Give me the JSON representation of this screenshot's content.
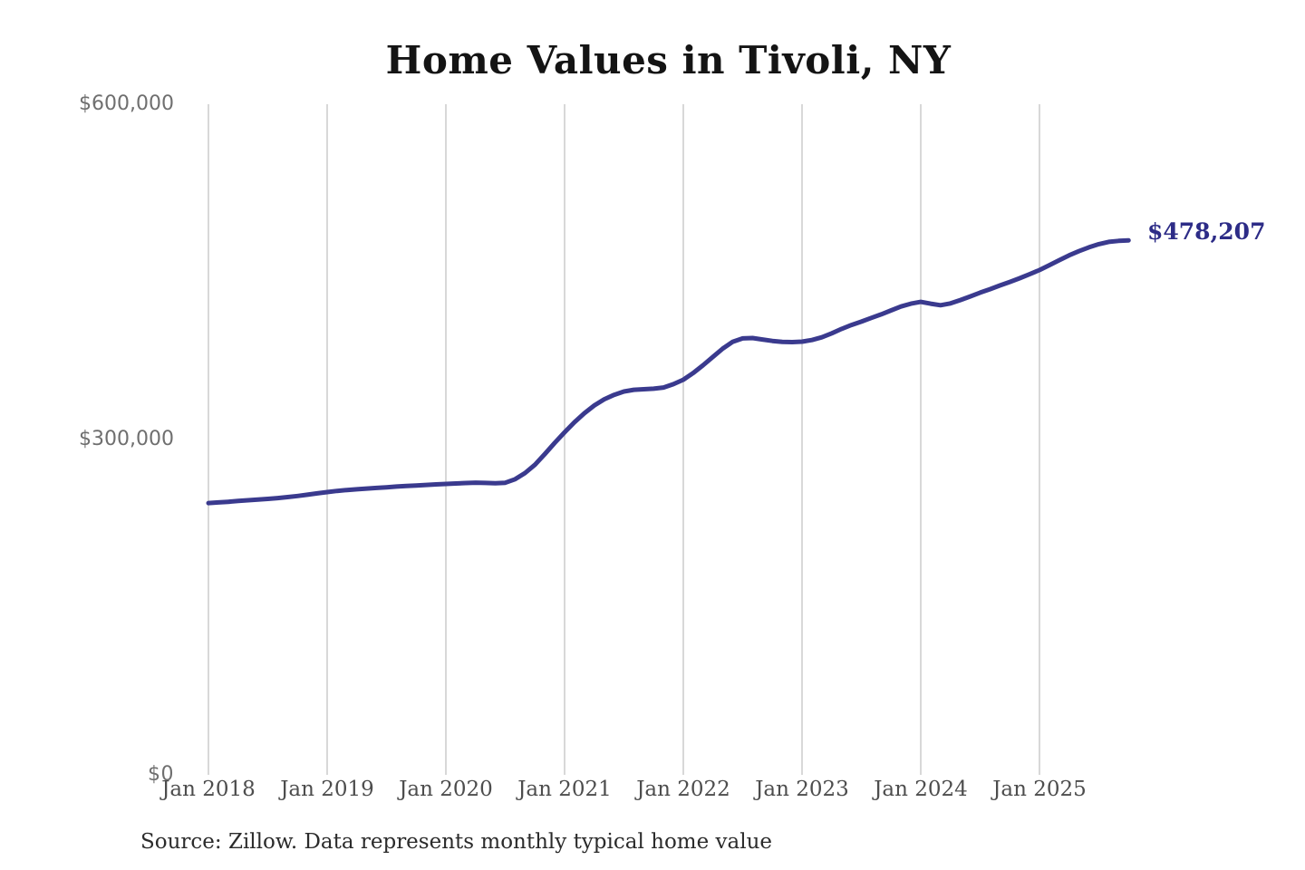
{
  "chart_data": {
    "type": "line",
    "title": "Home Values in Tivoli, NY",
    "source_note": "Source: Zillow. Data represents monthly typical home value",
    "end_label": "$478,207",
    "final_value": 478207,
    "xlabel": "",
    "ylabel": "",
    "ylim": [
      0,
      600000
    ],
    "y_tick_values": [
      0,
      300000,
      600000
    ],
    "y_tick_labels": [
      "$0",
      "$300,000",
      "$600,000"
    ],
    "x_tick_labels": [
      "Jan 2018",
      "Jan 2019",
      "Jan 2020",
      "Jan 2021",
      "Jan 2022",
      "Jan 2023",
      "Jan 2024",
      "Jan 2025"
    ],
    "grid": "vertical-only",
    "legend_position": "none",
    "line_color": "#3a3a8e",
    "end_label_color": "#2d2c87",
    "grid_color": "#cccccc",
    "series": [
      {
        "name": "Monthly typical home value",
        "interval": "monthly",
        "start_month": "Jan 2018",
        "end_month": "Oct 2025",
        "values": [
          243200,
          243700,
          244300,
          245000,
          245700,
          246300,
          246900,
          247600,
          248500,
          249500,
          250600,
          251800,
          253000,
          254000,
          254800,
          255500,
          256100,
          256700,
          257300,
          257900,
          258400,
          258900,
          259400,
          259900,
          260300,
          260700,
          261100,
          261400,
          261200,
          260900,
          261300,
          264500,
          270000,
          277500,
          287000,
          297000,
          306500,
          315500,
          323500,
          330500,
          336000,
          340000,
          343000,
          344500,
          345000,
          345500,
          346500,
          349500,
          353500,
          359500,
          366500,
          374000,
          381500,
          387500,
          390500,
          390800,
          389500,
          388200,
          387400,
          387200,
          387600,
          389000,
          391500,
          395000,
          399000,
          402500,
          405500,
          408800,
          412000,
          415500,
          419000,
          421500,
          423200,
          421500,
          420200,
          421800,
          424800,
          428000,
          431400,
          434500,
          437800,
          441000,
          444300,
          447900,
          451600,
          456000,
          460500,
          464800,
          468600,
          472000,
          474800,
          476800,
          477700,
          478207
        ]
      }
    ]
  }
}
